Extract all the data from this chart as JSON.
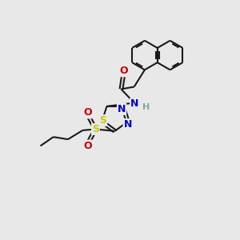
{
  "background_color": "#e8e8e8",
  "bond_color": "#1a1a1a",
  "atom_colors": {
    "S": "#cccc00",
    "N": "#0000cc",
    "O": "#cc0000",
    "H": "#7aabab",
    "C": "#1a1a1a"
  }
}
